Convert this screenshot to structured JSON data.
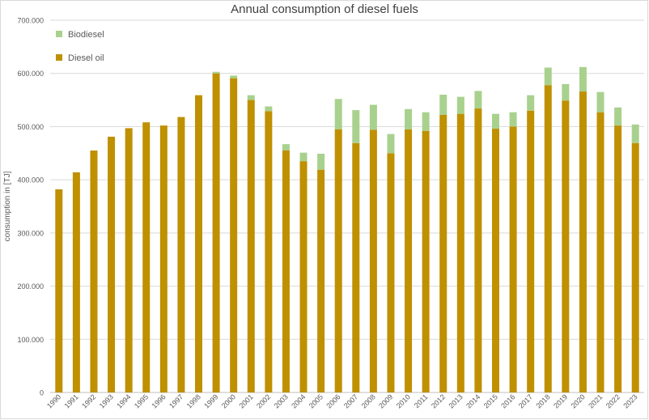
{
  "chart_data": {
    "type": "bar",
    "stacked": true,
    "title": "Annual consumption of diesel fuels",
    "xlabel": "",
    "ylabel": "consumption in [TJ]",
    "ylim": [
      0,
      700000
    ],
    "yticks": [
      "0",
      "100.000",
      "200.000",
      "300.000",
      "400.000",
      "500.000",
      "600.000",
      "700.000"
    ],
    "grid": true,
    "legend_position": "top-left",
    "categories": [
      "1990",
      "1991",
      "1992",
      "1993",
      "1994",
      "1995",
      "1996",
      "1997",
      "1998",
      "1999",
      "2000",
      "2001",
      "2002",
      "2003",
      "2004",
      "2005",
      "2006",
      "2007",
      "2008",
      "2009",
      "2010",
      "2011",
      "2012",
      "2013",
      "2014",
      "2015",
      "2016",
      "2017",
      "2018",
      "2019",
      "2020",
      "2021",
      "2022",
      "2023"
    ],
    "series": [
      {
        "name": "Diesel oil",
        "color": "#bf9000",
        "values": [
          382000,
          414000,
          455000,
          481000,
          497000,
          508000,
          502000,
          518000,
          559000,
          600000,
          591000,
          550000,
          529000,
          455000,
          435000,
          419000,
          495000,
          469000,
          494000,
          450000,
          495000,
          492000,
          522000,
          524000,
          534000,
          496000,
          500000,
          530000,
          578000,
          549000,
          566000,
          527000,
          502000,
          469000
        ]
      },
      {
        "name": "Biodiesel",
        "color": "#a9d18e",
        "values": [
          0,
          0,
          0,
          0,
          0,
          0,
          0,
          0,
          0,
          3000,
          5000,
          9000,
          9000,
          12000,
          16000,
          30000,
          57000,
          62000,
          47000,
          36000,
          38000,
          35000,
          38000,
          32000,
          33000,
          28000,
          27000,
          29000,
          33000,
          31000,
          46000,
          38000,
          34000,
          35000
        ]
      }
    ]
  }
}
